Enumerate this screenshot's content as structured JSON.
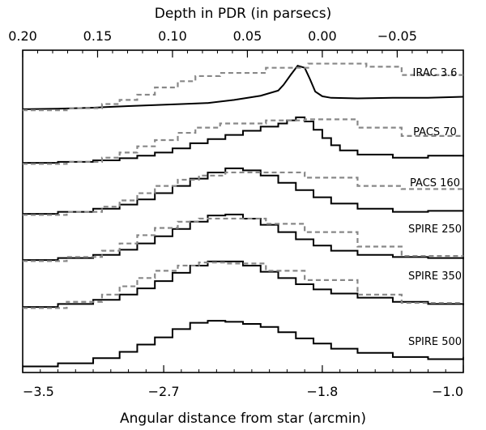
{
  "chart_data": {
    "type": "line",
    "title": "",
    "xlabel": "Angular distance from star (arcmin)",
    "xlim": [
      -3.5,
      -1.0
    ],
    "xticks": [
      -3.5,
      -2.7,
      -1.8,
      -1.0
    ],
    "xticklabels": [
      "−3.5",
      "−2.7",
      "−1.8",
      "−1.0"
    ],
    "top_axis": {
      "label": "Depth in PDR (in parsecs)",
      "ticks": [
        0.2,
        0.15,
        0.1,
        0.05,
        0.0,
        -0.05
      ],
      "ticklabels": [
        "0.20",
        "0.15",
        "0.10",
        "0.05",
        "0.00",
        "−0.05"
      ]
    },
    "legend": "none",
    "series": [
      {
        "name": "IRAC 3.6",
        "style": "solid",
        "x": [
          -3.5,
          -3.3,
          -3.1,
          -2.9,
          -2.75,
          -2.6,
          -2.45,
          -2.3,
          -2.15,
          -2.05,
          -2.02,
          -1.98,
          -1.94,
          -1.9,
          -1.87,
          -1.84,
          -1.8,
          -1.75,
          -1.6,
          -1.4,
          -1.2,
          -1.0
        ],
        "y": [
          0.08,
          0.09,
          0.11,
          0.14,
          0.16,
          0.18,
          0.2,
          0.26,
          0.34,
          0.44,
          0.55,
          0.74,
          0.92,
          0.88,
          0.66,
          0.42,
          0.33,
          0.3,
          0.29,
          0.3,
          0.3,
          0.32
        ]
      },
      {
        "name": "IRAC 3.6 reference",
        "style": "dashed-step",
        "x": [
          -3.5,
          -3.25,
          -3.05,
          -2.95,
          -2.85,
          -2.75,
          -2.62,
          -2.52,
          -2.38,
          -2.12,
          -1.88,
          -1.55,
          -1.35,
          -1.0
        ],
        "y": [
          0.06,
          0.1,
          0.18,
          0.26,
          0.36,
          0.5,
          0.62,
          0.72,
          0.78,
          0.88,
          0.96,
          0.9,
          0.74,
          0.74
        ]
      },
      {
        "name": "PACS 70",
        "style": "solid-step",
        "x": [
          -3.5,
          -3.3,
          -3.1,
          -2.95,
          -2.85,
          -2.75,
          -2.65,
          -2.55,
          -2.45,
          -2.35,
          -2.25,
          -2.15,
          -2.05,
          -2.0,
          -1.95,
          -1.9,
          -1.85,
          -1.8,
          -1.75,
          -1.7,
          -1.6,
          -1.4,
          -1.2,
          -1.0
        ],
        "y": [
          0.06,
          0.08,
          0.11,
          0.15,
          0.2,
          0.26,
          0.34,
          0.44,
          0.52,
          0.6,
          0.68,
          0.76,
          0.82,
          0.88,
          0.94,
          0.86,
          0.7,
          0.54,
          0.4,
          0.3,
          0.22,
          0.16,
          0.2,
          0.18
        ]
      },
      {
        "name": "PACS 70 reference",
        "style": "dashed-step",
        "x": [
          -3.5,
          -3.25,
          -3.05,
          -2.95,
          -2.85,
          -2.75,
          -2.62,
          -2.52,
          -2.38,
          -2.12,
          -1.9,
          -1.6,
          -1.35,
          -1.0
        ],
        "y": [
          0.04,
          0.08,
          0.16,
          0.26,
          0.38,
          0.5,
          0.64,
          0.74,
          0.82,
          0.88,
          0.9,
          0.74,
          0.58,
          0.58
        ]
      },
      {
        "name": "PACS 160",
        "style": "solid-step",
        "x": [
          -3.5,
          -3.3,
          -3.1,
          -2.95,
          -2.85,
          -2.75,
          -2.65,
          -2.55,
          -2.45,
          -2.35,
          -2.25,
          -2.15,
          -2.05,
          -1.95,
          -1.85,
          -1.75,
          -1.6,
          -1.4,
          -1.2,
          -1.0
        ],
        "y": [
          0.06,
          0.1,
          0.16,
          0.24,
          0.34,
          0.46,
          0.6,
          0.74,
          0.86,
          0.94,
          0.9,
          0.8,
          0.66,
          0.52,
          0.38,
          0.26,
          0.16,
          0.1,
          0.12,
          0.12
        ]
      },
      {
        "name": "PACS 160 reference",
        "style": "dashed-step",
        "x": [
          -3.5,
          -3.25,
          -3.05,
          -2.95,
          -2.85,
          -2.75,
          -2.62,
          -2.5,
          -2.35,
          -2.12,
          -1.9,
          -1.6,
          -1.35,
          -1.0
        ],
        "y": [
          0.04,
          0.1,
          0.2,
          0.32,
          0.46,
          0.6,
          0.72,
          0.8,
          0.86,
          0.86,
          0.76,
          0.6,
          0.54,
          0.58
        ]
      },
      {
        "name": "SPIRE 250",
        "style": "solid-step",
        "x": [
          -3.5,
          -3.3,
          -3.1,
          -2.95,
          -2.85,
          -2.75,
          -2.65,
          -2.55,
          -2.45,
          -2.35,
          -2.25,
          -2.15,
          -2.05,
          -1.95,
          -1.85,
          -1.75,
          -1.6,
          -1.4,
          -1.2,
          -1.0
        ],
        "y": [
          0.06,
          0.1,
          0.16,
          0.26,
          0.38,
          0.52,
          0.66,
          0.8,
          0.92,
          0.94,
          0.86,
          0.74,
          0.6,
          0.46,
          0.34,
          0.24,
          0.16,
          0.12,
          0.1,
          0.08
        ]
      },
      {
        "name": "SPIRE 250 reference",
        "style": "dashed-step",
        "x": [
          -3.5,
          -3.25,
          -3.05,
          -2.95,
          -2.85,
          -2.75,
          -2.62,
          -2.5,
          -2.35,
          -2.12,
          -1.9,
          -1.6,
          -1.35,
          -1.0
        ],
        "y": [
          0.04,
          0.12,
          0.24,
          0.38,
          0.54,
          0.68,
          0.8,
          0.86,
          0.86,
          0.76,
          0.6,
          0.32,
          0.14,
          0.14
        ]
      },
      {
        "name": "SPIRE 350",
        "style": "solid-step",
        "x": [
          -3.5,
          -3.3,
          -3.1,
          -2.95,
          -2.85,
          -2.75,
          -2.65,
          -2.55,
          -2.45,
          -2.35,
          -2.25,
          -2.15,
          -2.05,
          -1.95,
          -1.85,
          -1.75,
          -1.6,
          -1.4,
          -1.2,
          -1.0
        ],
        "y": [
          0.06,
          0.12,
          0.2,
          0.3,
          0.42,
          0.56,
          0.72,
          0.86,
          0.94,
          0.94,
          0.86,
          0.74,
          0.62,
          0.5,
          0.4,
          0.32,
          0.24,
          0.16,
          0.12,
          0.1
        ]
      },
      {
        "name": "SPIRE 350 reference",
        "style": "dashed-step",
        "x": [
          -3.5,
          -3.25,
          -3.05,
          -2.95,
          -2.85,
          -2.75,
          -2.62,
          -2.5,
          -2.35,
          -2.12,
          -1.9,
          -1.6,
          -1.35,
          -1.0
        ],
        "y": [
          0.04,
          0.16,
          0.3,
          0.46,
          0.62,
          0.76,
          0.86,
          0.92,
          0.9,
          0.76,
          0.58,
          0.3,
          0.14,
          0.14
        ]
      },
      {
        "name": "SPIRE 500",
        "style": "solid-step",
        "x": [
          -3.5,
          -3.3,
          -3.1,
          -2.95,
          -2.85,
          -2.75,
          -2.65,
          -2.55,
          -2.45,
          -2.35,
          -2.25,
          -2.15,
          -2.05,
          -1.95,
          -1.85,
          -1.75,
          -1.6,
          -1.4,
          -1.2,
          -1.0
        ],
        "y": [
          0.04,
          0.1,
          0.2,
          0.32,
          0.46,
          0.6,
          0.76,
          0.88,
          0.92,
          0.9,
          0.86,
          0.8,
          0.7,
          0.58,
          0.48,
          0.38,
          0.3,
          0.22,
          0.18,
          0.22
        ]
      }
    ],
    "colors": {
      "solid": "#000000",
      "dashed": "#888888"
    }
  }
}
